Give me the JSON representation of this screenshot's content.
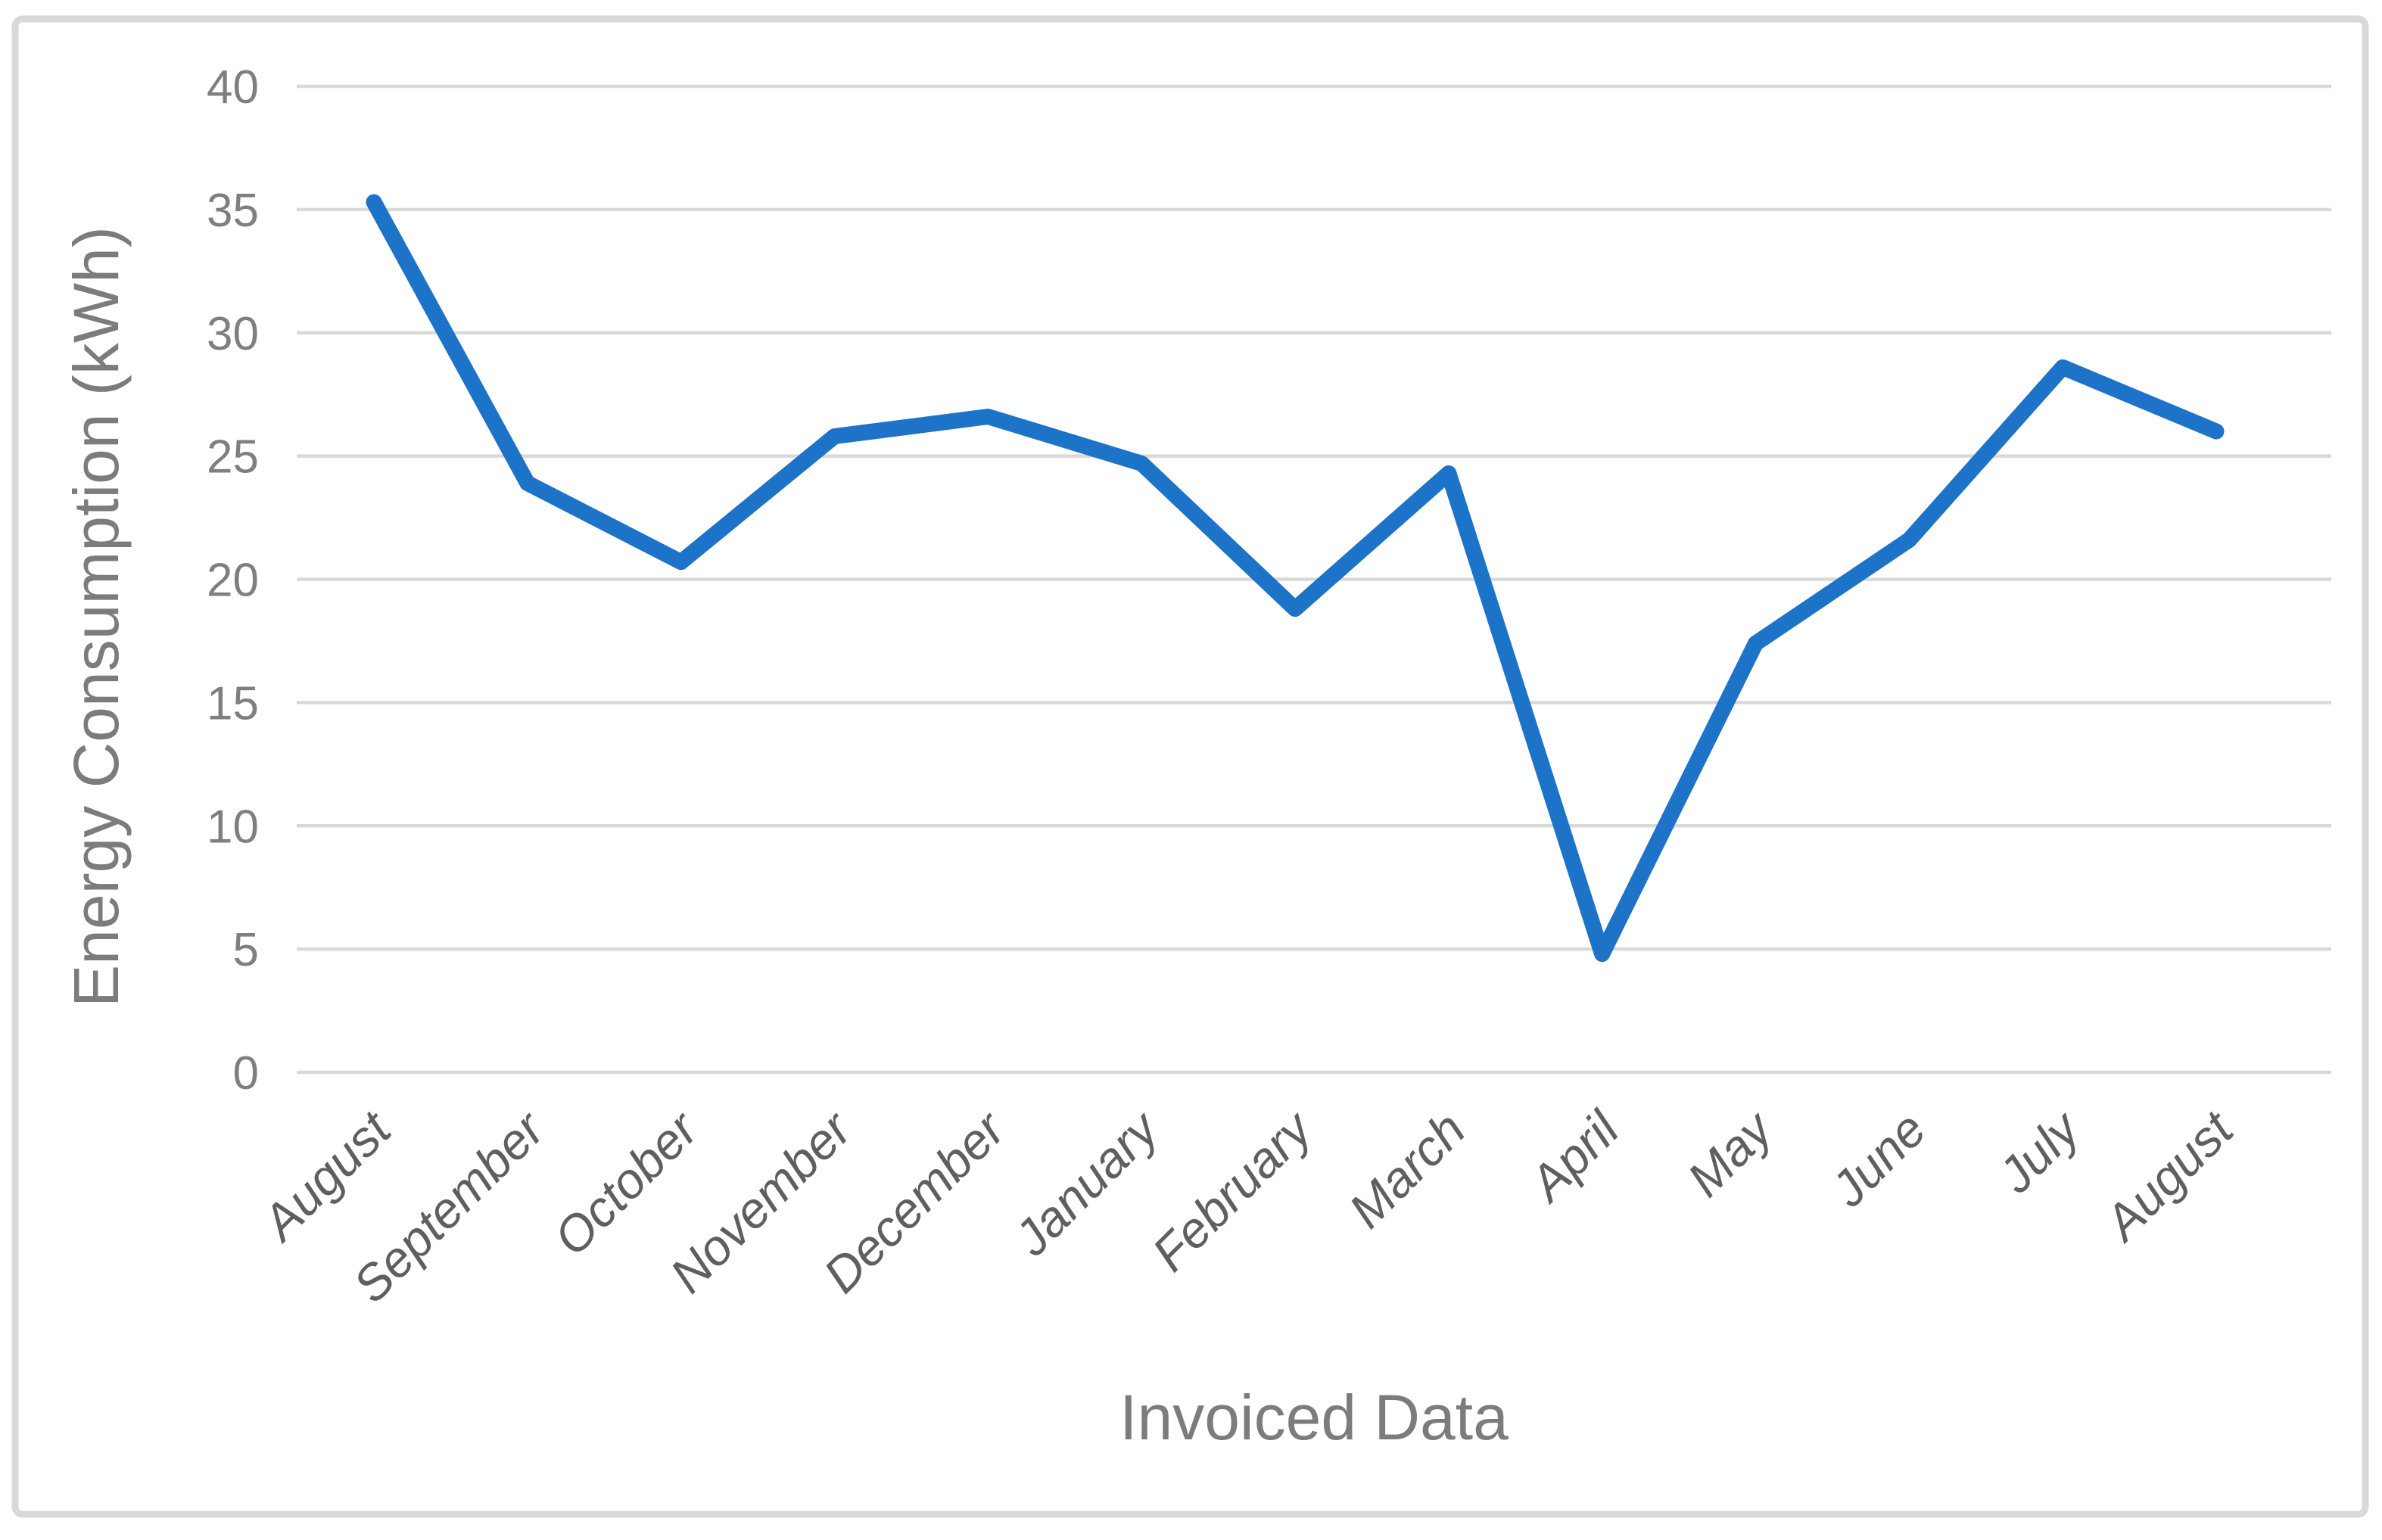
{
  "window": {
    "background_color": "#ffffff"
  },
  "chart_data": {
    "type": "line",
    "title": "",
    "xlabel": "Invoiced Data",
    "ylabel": "Energy Consumption (kWh)",
    "categories": [
      "August",
      "September",
      "October",
      "November",
      "December",
      "January",
      "February",
      "March",
      "April",
      "May",
      "June",
      "July",
      "August"
    ],
    "values": [
      35.3,
      23.9,
      20.7,
      25.8,
      26.6,
      24.7,
      18.8,
      24.3,
      4.8,
      17.4,
      21.6,
      28.6,
      26.0
    ],
    "ylim": [
      0,
      40
    ],
    "ytick_step": 5,
    "ytick_labels": [
      "0",
      "5",
      "10",
      "15",
      "20",
      "25",
      "30",
      "35",
      "40"
    ],
    "grid": "horizontal",
    "legend": "none",
    "category_label_rotation_deg": -45,
    "colors": {
      "line": "#1C73C8",
      "gridline": "#D9D9D9",
      "figure_border": "#D9D9D9",
      "tick_label": "#7F7F7F",
      "category_label": "#5F5F5F",
      "axis_title": "#7C7C7C",
      "background": "#FFFFFF"
    }
  }
}
